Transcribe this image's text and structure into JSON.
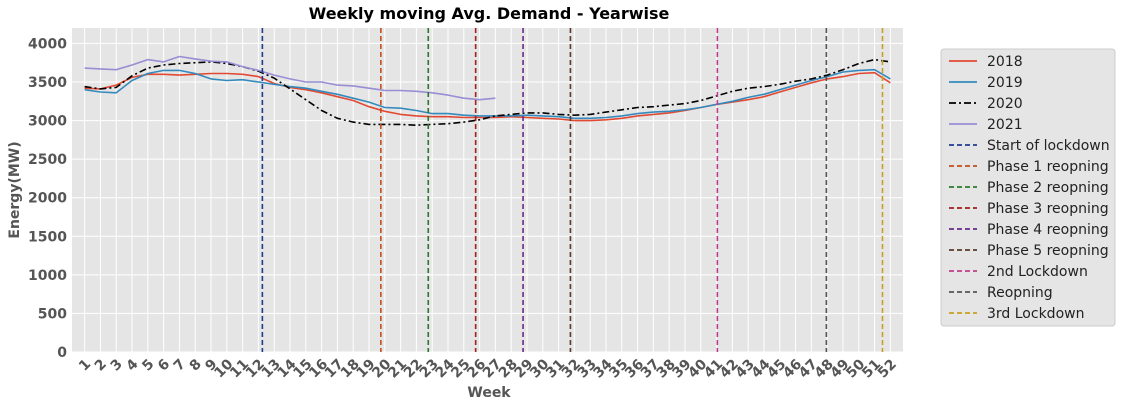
{
  "chart_data": {
    "type": "line",
    "title": "Weekly moving Avg. Demand - Yearwise",
    "xlabel": "Week",
    "ylabel": "Energy(MW)",
    "xlim": [
      0.2,
      52.8
    ],
    "ylim": [
      0,
      4200
    ],
    "grid": true,
    "legend_position": "right, outside plot",
    "x": [
      1,
      2,
      3,
      4,
      5,
      6,
      7,
      8,
      9,
      10,
      11,
      12,
      13,
      14,
      15,
      16,
      17,
      18,
      19,
      20,
      21,
      22,
      23,
      24,
      25,
      26,
      27,
      28,
      29,
      30,
      31,
      32,
      33,
      34,
      35,
      36,
      37,
      38,
      39,
      40,
      41,
      42,
      43,
      44,
      45,
      46,
      47,
      48,
      49,
      50,
      51,
      52
    ],
    "y_ticks": [
      0,
      500,
      1000,
      1500,
      2000,
      2500,
      3000,
      3500,
      4000
    ],
    "series": [
      {
        "name": "2018",
        "color": "#e24a33",
        "style": "solid",
        "x": [
          1,
          2,
          3,
          4,
          5,
          6,
          7,
          8,
          9,
          10,
          11,
          12,
          13,
          14,
          15,
          16,
          17,
          18,
          19,
          20,
          21,
          22,
          23,
          24,
          25,
          26,
          27,
          28,
          29,
          30,
          31,
          32,
          33,
          34,
          35,
          36,
          37,
          38,
          39,
          40,
          41,
          42,
          43,
          44,
          45,
          46,
          47,
          48,
          49,
          50,
          51,
          52
        ],
        "values": [
          3420,
          3410,
          3460,
          3560,
          3600,
          3600,
          3590,
          3600,
          3610,
          3610,
          3600,
          3570,
          3480,
          3430,
          3400,
          3360,
          3310,
          3260,
          3180,
          3120,
          3080,
          3060,
          3050,
          3050,
          3040,
          3040,
          3040,
          3050,
          3040,
          3030,
          3020,
          3000,
          3000,
          3010,
          3030,
          3060,
          3080,
          3100,
          3130,
          3170,
          3210,
          3240,
          3270,
          3310,
          3370,
          3430,
          3490,
          3540,
          3570,
          3610,
          3620,
          3490
        ]
      },
      {
        "name": "2019",
        "color": "#348abd",
        "style": "solid",
        "x": [
          1,
          2,
          3,
          4,
          5,
          6,
          7,
          8,
          9,
          10,
          11,
          12,
          13,
          14,
          15,
          16,
          17,
          18,
          19,
          20,
          21,
          22,
          23,
          24,
          25,
          26,
          27,
          28,
          29,
          30,
          31,
          32,
          33,
          34,
          35,
          36,
          37,
          38,
          39,
          40,
          41,
          42,
          43,
          44,
          45,
          46,
          47,
          48,
          49,
          50,
          51,
          52
        ],
        "values": [
          3400,
          3370,
          3360,
          3520,
          3610,
          3650,
          3650,
          3610,
          3540,
          3520,
          3530,
          3500,
          3470,
          3440,
          3420,
          3380,
          3340,
          3290,
          3240,
          3170,
          3160,
          3130,
          3090,
          3090,
          3070,
          3060,
          3060,
          3060,
          3070,
          3060,
          3050,
          3030,
          3030,
          3040,
          3060,
          3090,
          3110,
          3120,
          3140,
          3170,
          3210,
          3250,
          3300,
          3340,
          3400,
          3460,
          3520,
          3570,
          3630,
          3650,
          3660,
          3540
        ]
      },
      {
        "name": "2020",
        "color": "#000000",
        "style": "dashdot",
        "x": [
          1,
          2,
          3,
          4,
          5,
          6,
          7,
          8,
          9,
          10,
          11,
          12,
          13,
          14,
          15,
          16,
          17,
          18,
          19,
          20,
          21,
          22,
          23,
          24,
          25,
          26,
          27,
          28,
          29,
          30,
          31,
          32,
          33,
          34,
          35,
          36,
          37,
          38,
          39,
          40,
          41,
          42,
          43,
          44,
          45,
          46,
          47,
          48,
          49,
          50,
          51,
          52
        ],
        "values": [
          3440,
          3410,
          3430,
          3580,
          3680,
          3720,
          3740,
          3750,
          3760,
          3740,
          3700,
          3640,
          3550,
          3410,
          3270,
          3130,
          3030,
          2980,
          2950,
          2950,
          2950,
          2940,
          2950,
          2960,
          2980,
          3010,
          3060,
          3080,
          3100,
          3100,
          3080,
          3070,
          3080,
          3110,
          3140,
          3170,
          3180,
          3200,
          3220,
          3260,
          3320,
          3380,
          3420,
          3440,
          3470,
          3510,
          3540,
          3590,
          3660,
          3740,
          3790,
          3760
        ]
      },
      {
        "name": "2021",
        "color": "#988ed5",
        "style": "solid",
        "x": [
          1,
          2,
          3,
          4,
          5,
          6,
          7,
          8,
          9,
          10,
          11,
          12,
          13,
          14,
          15,
          16,
          17,
          18,
          19,
          20,
          21,
          22,
          23,
          24,
          25,
          26,
          27
        ],
        "values": [
          3680,
          3670,
          3660,
          3720,
          3790,
          3760,
          3830,
          3800,
          3770,
          3760,
          3700,
          3650,
          3590,
          3540,
          3500,
          3500,
          3460,
          3450,
          3420,
          3390,
          3390,
          3380,
          3360,
          3330,
          3290,
          3270,
          3290
        ]
      }
    ],
    "vertical_lines": [
      {
        "name": "Start of lockdown",
        "x": 12.25,
        "color": "#1f3a93"
      },
      {
        "name": "Phase 1 reopning",
        "x": 19.75,
        "color": "#c44e1e"
      },
      {
        "name": "Phase 2 reopning",
        "x": 22.75,
        "color": "#2a7a2a"
      },
      {
        "name": "Phase 3 reopning",
        "x": 25.75,
        "color": "#a02020"
      },
      {
        "name": "Phase 4 reopning",
        "x": 28.75,
        "color": "#6a2a8a"
      },
      {
        "name": "Phase 5 reopning",
        "x": 31.75,
        "color": "#5a3a2a"
      },
      {
        "name": "2nd Lockdown",
        "x": 41.05,
        "color": "#c23b8a"
      },
      {
        "name": "Reopning",
        "x": 47.95,
        "color": "#555555"
      },
      {
        "name": "3rd Lockdown",
        "x": 51.5,
        "color": "#c8a020"
      }
    ]
  }
}
